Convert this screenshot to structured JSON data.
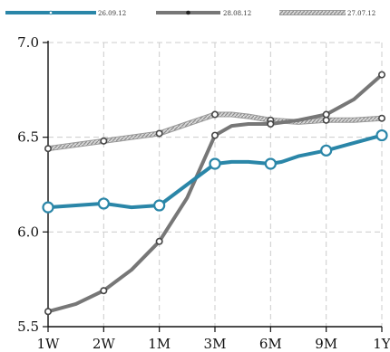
{
  "chart_data": {
    "type": "line",
    "title": "",
    "xlabel": "",
    "ylabel": "",
    "categories": [
      "1W",
      "2W",
      "1M",
      "3M",
      "6M",
      "9M",
      "1Y"
    ],
    "yticks": [
      "5.5",
      "6.0",
      "6.5",
      "7.0"
    ],
    "ylim": [
      5.5,
      7.0
    ],
    "grid": true,
    "legend_position": "top",
    "series": [
      {
        "name": "26.09.12",
        "color": "#2a86a8",
        "marker": "open-circle",
        "style": "solid",
        "x": [
          0,
          0.5,
          1,
          1.5,
          2,
          2.5,
          3,
          3.3,
          3.6,
          4,
          4.2,
          4.5,
          5,
          5.5,
          6
        ],
        "values": [
          6.13,
          6.14,
          6.15,
          6.13,
          6.14,
          6.25,
          6.36,
          6.37,
          6.37,
          6.36,
          6.37,
          6.4,
          6.43,
          6.47,
          6.51
        ]
      },
      {
        "name": "28.08.12",
        "color": "#777777",
        "marker": "open-circle",
        "style": "solid",
        "x": [
          0,
          0.5,
          1,
          1.5,
          2,
          2.5,
          3,
          3.3,
          3.6,
          4,
          4.5,
          5,
          5.5,
          6
        ],
        "values": [
          5.58,
          5.62,
          5.69,
          5.8,
          5.95,
          6.18,
          6.51,
          6.56,
          6.57,
          6.57,
          6.59,
          6.62,
          6.7,
          6.83
        ]
      },
      {
        "name": "27.07.12",
        "color": "#999999",
        "marker": "open-circle",
        "style": "hatched",
        "x": [
          0,
          0.5,
          1,
          1.5,
          2,
          2.5,
          3,
          3.3,
          3.6,
          4,
          4.5,
          5,
          5.5,
          6
        ],
        "values": [
          6.44,
          6.46,
          6.48,
          6.5,
          6.52,
          6.57,
          6.62,
          6.62,
          6.61,
          6.59,
          6.58,
          6.59,
          6.59,
          6.6
        ]
      }
    ],
    "markers": {
      "26.09.12": [
        0,
        1,
        2,
        3,
        4,
        5,
        6
      ],
      "28.08.12": [
        0,
        1,
        2,
        3,
        4,
        5,
        6
      ],
      "27.07.12": [
        0,
        1,
        2,
        3,
        4,
        5,
        6
      ]
    }
  }
}
